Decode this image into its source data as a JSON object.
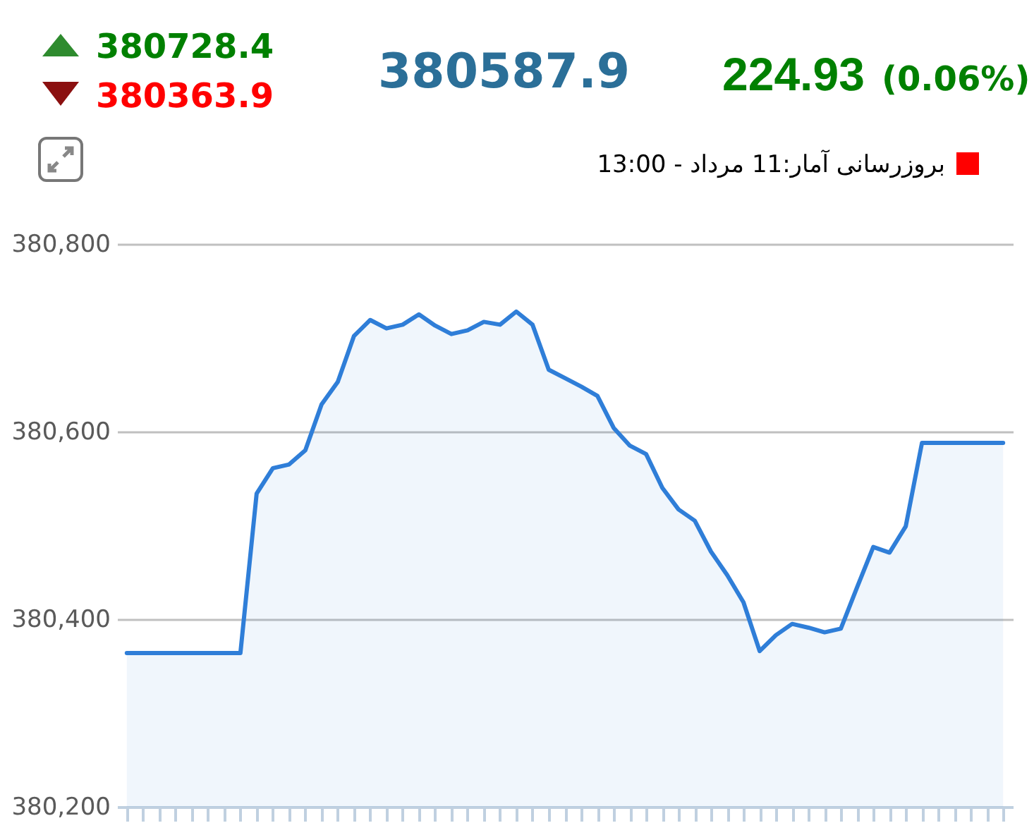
{
  "chart_data": {
    "type": "area",
    "categories": [
      null,
      null,
      null,
      null,
      null,
      null,
      null,
      null,
      null,
      null,
      null,
      null,
      null,
      null,
      null,
      null,
      null,
      null,
      null,
      null,
      null,
      null,
      null,
      null,
      null,
      null,
      null,
      null,
      null,
      null,
      null,
      null,
      null,
      null,
      null,
      null,
      null,
      null,
      null,
      null,
      null,
      null,
      null,
      null,
      null,
      null,
      null,
      null,
      null,
      null,
      null,
      null,
      null,
      null,
      null
    ],
    "values": [
      380364,
      380364,
      380364,
      380364,
      380364,
      380364,
      380364,
      380364,
      380534,
      380561,
      380565,
      380580,
      380629,
      380653,
      380702,
      380719,
      380710,
      380714,
      380725,
      380713,
      380704,
      380708,
      380717,
      380714,
      380728,
      380714,
      380666,
      380657,
      380648,
      380638,
      380604,
      380585,
      380576,
      380540,
      380517,
      380505,
      380472,
      380447,
      380418,
      380366,
      380383,
      380395,
      380391,
      380386,
      380390,
      380434,
      380477,
      380471,
      380499,
      380588,
      380588,
      380588,
      380588,
      380588,
      380588
    ],
    "color": "#2f7ed8",
    "ylim": [
      380200,
      380800
    ],
    "yticks": [
      {
        "value": 380200,
        "label": "380,200"
      },
      {
        "value": 380400,
        "label": "380,400"
      },
      {
        "value": 380600,
        "label": "380,600"
      },
      {
        "value": 380800,
        "label": "380,800"
      }
    ],
    "grid": "y",
    "tick_labels": "y",
    "annotations": [
      "380728.4",
      "380363.9",
      "380587.9",
      "224.93",
      "(0.06%)",
      "بروزرسانی آمار:11 مرداد - 13:00"
    ]
  }
}
